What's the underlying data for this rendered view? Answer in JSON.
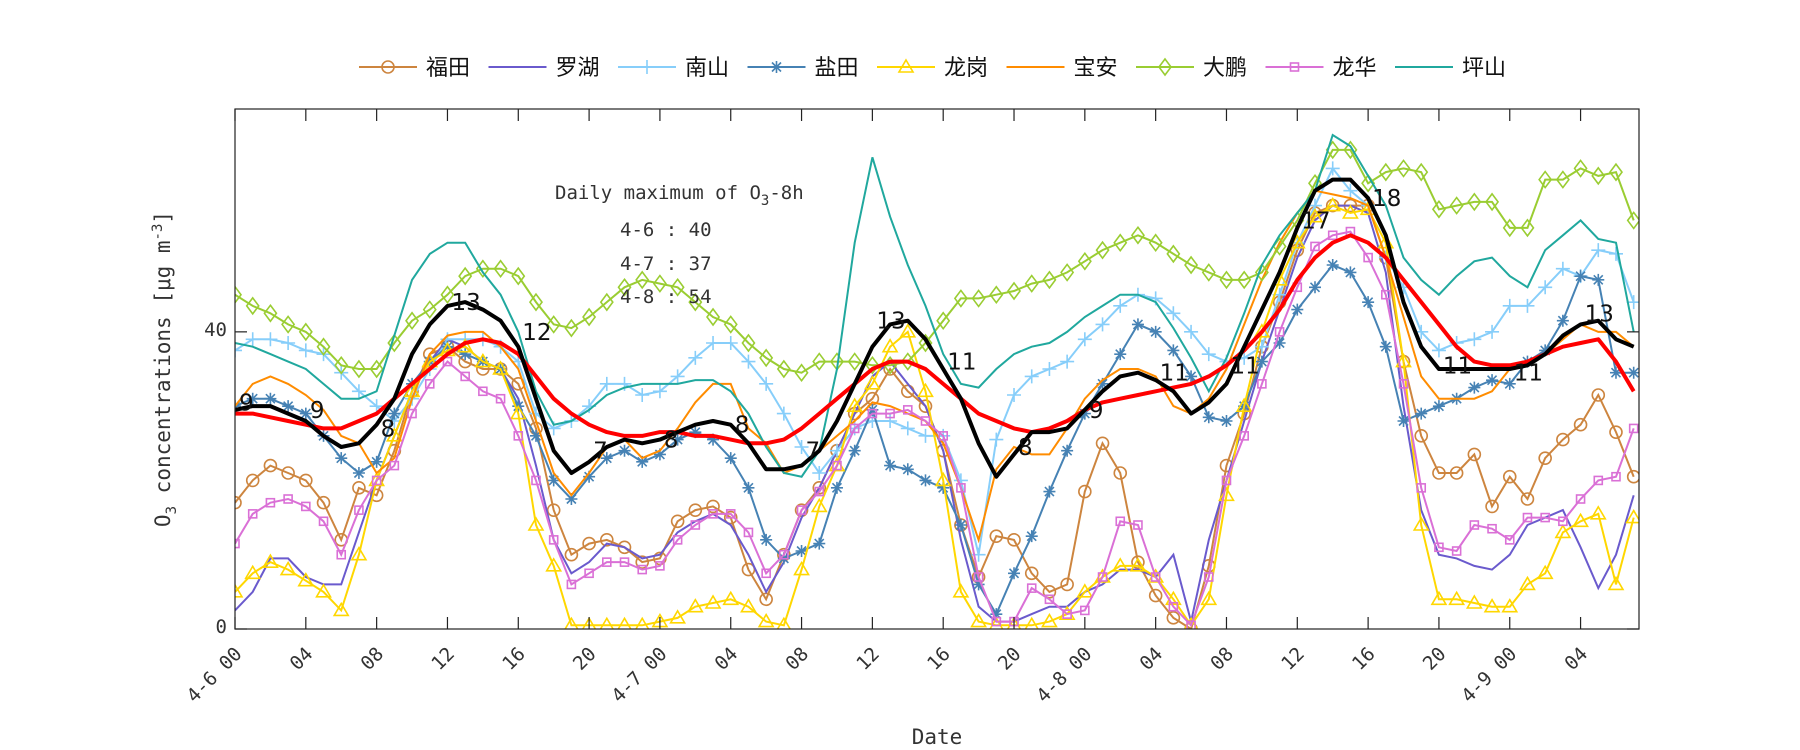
{
  "chart_data": {
    "type": "line",
    "xlabel": "Date",
    "ylabel": "O3 concentrations [μg m-3]",
    "ylim": [
      0,
      70
    ],
    "xlim": [
      "4-6 00",
      "4-9 07"
    ],
    "grid": false,
    "legend_placement": "top-outside",
    "yticks": [
      0,
      40
    ],
    "xticks": [
      {
        "time": "4-6 00",
        "label": "4-6 00"
      },
      {
        "time": "4-6 04",
        "label": "04"
      },
      {
        "time": "4-6 08",
        "label": "08"
      },
      {
        "time": "4-6 12",
        "label": "12"
      },
      {
        "time": "4-6 16",
        "label": "16"
      },
      {
        "time": "4-6 20",
        "label": "20"
      },
      {
        "time": "4-7 00",
        "label": "4-7 00"
      },
      {
        "time": "4-7 04",
        "label": "04"
      },
      {
        "time": "4-7 08",
        "label": "08"
      },
      {
        "time": "4-7 12",
        "label": "12"
      },
      {
        "time": "4-7 16",
        "label": "16"
      },
      {
        "time": "4-7 20",
        "label": "20"
      },
      {
        "time": "4-8 00",
        "label": "4-8 00"
      },
      {
        "time": "4-8 04",
        "label": "04"
      },
      {
        "time": "4-8 08",
        "label": "08"
      },
      {
        "time": "4-8 12",
        "label": "12"
      },
      {
        "time": "4-8 16",
        "label": "16"
      },
      {
        "time": "4-8 20",
        "label": "20"
      },
      {
        "time": "4-9 00",
        "label": "4-9 00"
      },
      {
        "time": "4-9 04",
        "label": "04"
      }
    ],
    "x": [
      "4-6 00",
      "4-6 01",
      "4-6 02",
      "4-6 03",
      "4-6 04",
      "4-6 05",
      "4-6 06",
      "4-6 07",
      "4-6 08",
      "4-6 09",
      "4-6 10",
      "4-6 11",
      "4-6 12",
      "4-6 13",
      "4-6 14",
      "4-6 15",
      "4-6 16",
      "4-6 17",
      "4-6 18",
      "4-6 19",
      "4-6 20",
      "4-6 21",
      "4-6 22",
      "4-6 23",
      "4-7 00",
      "4-7 01",
      "4-7 02",
      "4-7 03",
      "4-7 04",
      "4-7 05",
      "4-7 06",
      "4-7 07",
      "4-7 08",
      "4-7 09",
      "4-7 10",
      "4-7 11",
      "4-7 12",
      "4-7 13",
      "4-7 14",
      "4-7 15",
      "4-7 16",
      "4-7 17",
      "4-7 18",
      "4-7 19",
      "4-7 20",
      "4-7 21",
      "4-7 22",
      "4-7 23",
      "4-8 00",
      "4-8 01",
      "4-8 02",
      "4-8 03",
      "4-8 04",
      "4-8 05",
      "4-8 06",
      "4-8 07",
      "4-8 08",
      "4-8 09",
      "4-8 10",
      "4-8 11",
      "4-8 12",
      "4-8 13",
      "4-8 14",
      "4-8 15",
      "4-8 16",
      "4-8 17",
      "4-8 18",
      "4-8 19",
      "4-8 20",
      "4-8 21",
      "4-8 22",
      "4-8 23",
      "4-9 00",
      "4-9 01",
      "4-9 02",
      "4-9 03",
      "4-9 04",
      "4-9 05",
      "4-9 06",
      "4-9 07"
    ],
    "series": [
      {
        "name": "福田",
        "color": "#cd853f",
        "marker": "circle",
        "values": [
          17,
          20,
          22,
          21,
          20,
          17,
          12,
          19,
          18,
          24,
          32,
          37,
          38,
          36,
          35,
          35,
          33,
          27,
          16,
          10,
          11.5,
          12,
          11,
          9,
          9.5,
          14.5,
          16,
          16.5,
          15,
          8,
          4,
          10,
          16,
          19,
          24,
          29,
          31,
          35,
          32,
          30,
          24,
          14,
          7,
          12.5,
          12,
          7.5,
          5,
          6,
          18.5,
          25,
          21,
          9,
          4.5,
          1.5,
          0,
          8.5,
          22,
          29,
          38,
          44,
          51,
          56,
          57,
          57,
          57,
          50,
          36,
          26,
          21,
          21,
          23.5,
          16.5,
          20.5,
          17.5,
          23,
          25.5,
          27.5,
          31.5,
          26.5,
          20.5
        ]
      },
      {
        "name": "罗湖",
        "color": "#6a5acd",
        "marker": "none",
        "values": [
          2.5,
          5,
          9.5,
          9.5,
          7,
          6,
          6,
          13,
          20,
          26,
          32,
          36,
          39,
          38,
          36,
          35,
          31,
          22,
          12,
          7.5,
          9,
          11.5,
          11,
          9.5,
          10,
          13,
          14.5,
          15.5,
          14,
          10,
          5,
          9,
          15,
          19,
          24,
          29,
          34,
          36,
          33,
          30,
          24,
          12,
          3,
          1,
          1,
          2,
          3,
          3,
          5,
          6,
          8,
          8,
          7,
          10,
          1,
          12,
          20,
          28,
          36,
          43,
          50,
          55,
          57,
          57,
          56,
          48,
          30,
          16,
          10,
          9.5,
          8.5,
          8,
          10,
          14,
          15,
          16,
          11,
          5.5,
          10,
          18
        ]
      },
      {
        "name": "南山",
        "color": "#87cefa",
        "marker": "plus",
        "values": [
          37.5,
          39,
          39,
          38.5,
          37.5,
          37,
          34.5,
          32,
          30,
          28,
          31,
          35,
          39,
          39,
          39,
          38,
          36,
          29,
          27,
          28,
          30,
          33,
          33,
          31.5,
          32,
          34,
          36.5,
          38.5,
          38.5,
          36,
          33,
          29,
          24.5,
          21,
          24,
          27,
          28,
          28,
          27,
          26,
          26,
          20,
          10,
          25.5,
          31.5,
          34,
          35,
          36,
          39,
          41,
          43.5,
          45,
          44.5,
          42.5,
          40,
          37,
          36,
          36.5,
          38,
          45,
          52,
          57,
          62,
          59,
          57,
          50,
          46,
          40,
          37.5,
          38.5,
          39,
          40,
          43.5,
          43.5,
          46,
          48.5,
          47.5,
          51,
          50.5,
          44
        ]
      },
      {
        "name": "盐田",
        "color": "#4682b4",
        "marker": "asterisk",
        "values": [
          30,
          31,
          31,
          30,
          29,
          26,
          23,
          21,
          22.5,
          29,
          33,
          36,
          38,
          37,
          36,
          35,
          30,
          26,
          20,
          17.5,
          20.5,
          23,
          24,
          22.5,
          23.5,
          25.5,
          26.5,
          25.5,
          23,
          19,
          12,
          9.5,
          10.5,
          11.5,
          19,
          24,
          29.5,
          22,
          21.5,
          20,
          19,
          14,
          6,
          2,
          7.5,
          12.5,
          18.5,
          24,
          29,
          33,
          37,
          41,
          40,
          37.5,
          34,
          28.5,
          28,
          30,
          36,
          38.5,
          43,
          46,
          49,
          48,
          44,
          38,
          28,
          29,
          30,
          31,
          32.5,
          33.5,
          33,
          36,
          37.5,
          41.5,
          47.5,
          47,
          34.5,
          34.5
        ]
      },
      {
        "name": "龙岗",
        "color": "#ffd700",
        "marker": "triangle",
        "values": [
          5,
          7.5,
          9,
          8,
          6.5,
          5,
          2.5,
          10,
          20,
          26,
          32,
          36,
          37.5,
          38,
          36,
          35,
          29,
          14,
          8.5,
          0.5,
          0.5,
          0.5,
          0.5,
          0.5,
          1,
          1.5,
          3,
          3.5,
          4,
          3,
          1,
          0.5,
          8,
          16.5,
          22,
          30,
          33,
          38,
          40,
          32,
          20,
          5,
          1,
          0.5,
          0.5,
          0.5,
          1,
          2,
          5,
          7,
          8.5,
          8.5,
          7,
          4,
          0.5,
          4,
          18,
          30,
          40,
          47,
          52,
          55.5,
          57,
          56,
          56.5,
          52,
          36,
          14,
          4,
          4,
          3.5,
          3,
          3,
          6,
          7.5,
          13,
          14.5,
          15.5,
          6,
          15
        ]
      },
      {
        "name": "宝安",
        "color": "#ff8c00",
        "marker": "none",
        "values": [
          30,
          33,
          34,
          33,
          31.5,
          29.5,
          26,
          25,
          21,
          23,
          31,
          37,
          39.5,
          40,
          40,
          38,
          35,
          28,
          21,
          18,
          21,
          24.5,
          25.5,
          23,
          24,
          27,
          30.5,
          33,
          33,
          27,
          25,
          21,
          22,
          24,
          26,
          28,
          30.5,
          30,
          29,
          28,
          25,
          19,
          12,
          21.5,
          24.5,
          23.5,
          23.5,
          27,
          31,
          33.5,
          35,
          35,
          34,
          30,
          29,
          31,
          35,
          41,
          47,
          52,
          56,
          59,
          58.5,
          58,
          57,
          50,
          42,
          34,
          31,
          31,
          31,
          32,
          35,
          36,
          37,
          39,
          41,
          40,
          40,
          38
        ]
      },
      {
        "name": "大鹏",
        "color": "#9acd32",
        "marker": "diamond",
        "values": [
          45,
          43.5,
          42.5,
          41,
          40,
          38,
          35.5,
          35,
          35,
          38.5,
          41.5,
          43,
          45,
          47.5,
          48.5,
          48.5,
          47.5,
          44,
          41,
          40.5,
          42,
          44,
          46,
          47,
          46.5,
          46,
          44,
          42,
          41,
          38.5,
          36.5,
          35,
          34.5,
          36,
          36,
          36,
          35.5,
          35.5,
          36,
          38.5,
          41.5,
          44.5,
          44.5,
          45,
          45.5,
          46.5,
          47,
          48,
          49.5,
          51,
          52,
          53,
          52,
          50.5,
          49,
          48,
          47,
          47,
          48,
          51.5,
          55,
          60,
          64.5,
          64.5,
          60,
          61.5,
          62,
          61.5,
          56.5,
          57,
          57.5,
          57.5,
          54,
          54,
          60.5,
          60.5,
          62,
          61,
          61.5,
          55
        ]
      },
      {
        "name": "龙华",
        "color": "#da70d6",
        "marker": "square",
        "values": [
          11.5,
          15.5,
          17,
          17.5,
          16.5,
          14.5,
          10,
          16,
          20,
          22,
          29,
          33,
          36,
          34,
          32,
          31,
          26,
          20,
          12,
          6,
          7.5,
          9,
          9,
          8,
          8.5,
          12,
          14,
          15.5,
          15.5,
          13,
          7.5,
          10,
          16,
          18.5,
          22,
          27,
          29,
          29,
          29.5,
          28,
          26,
          19,
          7,
          1,
          1,
          5.5,
          4,
          2,
          2.5,
          7,
          14.5,
          14,
          7,
          3,
          0.5,
          7,
          20,
          26,
          33,
          40,
          46,
          51.5,
          53,
          53.5,
          50,
          45,
          33,
          19,
          11,
          10.5,
          14,
          13.5,
          12,
          15,
          15,
          14.5,
          17.5,
          20,
          20.5,
          27
        ]
      },
      {
        "name": "坪山",
        "color": "#20a89e",
        "marker": "none",
        "values": [
          38.5,
          38,
          37,
          36,
          35,
          33,
          31,
          31,
          32,
          39.5,
          47,
          50.5,
          52,
          52,
          48,
          45,
          40,
          32,
          27.5,
          28,
          29.5,
          31.5,
          32.5,
          33,
          33,
          33,
          33.5,
          33.5,
          32,
          29,
          24.5,
          21,
          20.5,
          24,
          35,
          52,
          63.5,
          55.5,
          49,
          43.5,
          37,
          33,
          32.5,
          35,
          37,
          38,
          38.5,
          40,
          42,
          43.5,
          45,
          45,
          44,
          40.5,
          36.5,
          32,
          36.5,
          42.5,
          49,
          53,
          56,
          59,
          66.5,
          65,
          61,
          57,
          50,
          47,
          45,
          47.5,
          49.5,
          50,
          47.5,
          46,
          51,
          53,
          55,
          52.5,
          52,
          40
        ]
      }
    ],
    "summary_lines": [
      {
        "color": "#ff0000",
        "values": [
          29,
          29,
          28.5,
          28,
          27.5,
          27,
          27,
          28,
          29,
          31,
          33,
          35,
          37,
          38.5,
          39,
          38.5,
          37,
          34,
          31,
          29,
          27.5,
          26.5,
          26,
          26,
          26.5,
          26.5,
          26,
          26,
          25.5,
          25,
          25,
          25.5,
          27,
          29,
          31,
          33,
          35,
          36,
          36,
          35,
          33,
          31,
          29,
          28,
          27,
          26.5,
          27,
          28,
          29.5,
          30.5,
          31,
          31.5,
          32,
          32.5,
          33,
          34,
          35.5,
          37.5,
          40,
          43,
          47,
          50,
          52,
          53,
          52,
          50,
          47,
          44,
          41,
          38,
          36,
          35.5,
          35.5,
          36,
          37,
          38,
          38.5,
          39,
          36,
          32
        ]
      },
      {
        "color": "#000000",
        "values": [
          29.5,
          30,
          30,
          29,
          28,
          26,
          24.5,
          25,
          27.5,
          31,
          37,
          41,
          43.5,
          44,
          43,
          41.5,
          38,
          31,
          24,
          21,
          22.5,
          24.5,
          25.5,
          25,
          25.5,
          26.5,
          27.5,
          28,
          27.5,
          25,
          21.5,
          21.5,
          22,
          24,
          28,
          33,
          38,
          41,
          41.5,
          39,
          35,
          31,
          25,
          20.5,
          23.5,
          26.5,
          26.5,
          27,
          29.5,
          32,
          34,
          34.5,
          33.5,
          32,
          29,
          30.5,
          33,
          38,
          43,
          48,
          54,
          59,
          60.5,
          60.5,
          58,
          53,
          44,
          38,
          35,
          35,
          35,
          35,
          35,
          35.5,
          37,
          39.5,
          41,
          41.5,
          39,
          38
        ]
      }
    ],
    "annotations": [
      {
        "text": "9",
        "time": "4-6 00",
        "y": 30.5
      },
      {
        "text": "9",
        "time": "4-6 04",
        "y": 29.5
      },
      {
        "text": "8",
        "time": "4-6 08",
        "y": 27
      },
      {
        "text": "13",
        "time": "4-6 12",
        "y": 44
      },
      {
        "text": "12",
        "time": "4-6 16",
        "y": 40
      },
      {
        "text": "7",
        "time": "4-6 20",
        "y": 24
      },
      {
        "text": "8",
        "time": "4-7 00",
        "y": 25.5
      },
      {
        "text": "8",
        "time": "4-7 04",
        "y": 27.5
      },
      {
        "text": "7",
        "time": "4-7 08",
        "y": 24
      },
      {
        "text": "13",
        "time": "4-7 12",
        "y": 41.5
      },
      {
        "text": "11",
        "time": "4-7 16",
        "y": 36
      },
      {
        "text": "8",
        "time": "4-7 20",
        "y": 24.5
      },
      {
        "text": "9",
        "time": "4-8 00",
        "y": 29.5
      },
      {
        "text": "11",
        "time": "4-8 04",
        "y": 34.5
      },
      {
        "text": "11",
        "time": "4-8 08",
        "y": 35.5
      },
      {
        "text": "17",
        "time": "4-8 12",
        "y": 55
      },
      {
        "text": "18",
        "time": "4-8 16",
        "y": 58
      },
      {
        "text": "11",
        "time": "4-8 20",
        "y": 35.5
      },
      {
        "text": "11",
        "time": "4-9 00",
        "y": 34.5
      },
      {
        "text": "13",
        "time": "4-9 04",
        "y": 42.5
      }
    ],
    "note": {
      "title_prefix": "Daily maximum of O",
      "title_sub": "3",
      "title_suffix": "-8h",
      "lines": [
        "4-6 : 40",
        "4-7 : 37",
        "4-8 : 54"
      ]
    }
  }
}
